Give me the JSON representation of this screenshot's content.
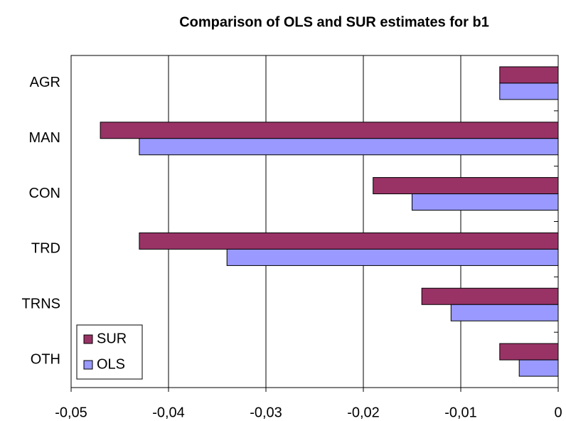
{
  "chart_data": {
    "type": "barh",
    "title": "Comparison of OLS and SUR estimates for b1",
    "categories": [
      "AGR",
      "MAN",
      "CON",
      "TRD",
      "TRNS",
      "OTH"
    ],
    "series": [
      {
        "name": "SUR",
        "color": "#993366",
        "values": [
          -0.006,
          -0.047,
          -0.019,
          -0.043,
          -0.014,
          -0.006
        ]
      },
      {
        "name": "OLS",
        "color": "#9999ff",
        "values": [
          -0.006,
          -0.043,
          -0.015,
          -0.034,
          -0.011,
          -0.004
        ]
      }
    ],
    "xlim": [
      -0.05,
      0
    ],
    "xticks": [
      {
        "value": -0.05,
        "label": "-0,05"
      },
      {
        "value": -0.04,
        "label": "-0,04"
      },
      {
        "value": -0.03,
        "label": "-0,03"
      },
      {
        "value": -0.02,
        "label": "-0,02"
      },
      {
        "value": -0.01,
        "label": "-0,01"
      },
      0
    ],
    "grid": true,
    "legend": "lower left"
  }
}
